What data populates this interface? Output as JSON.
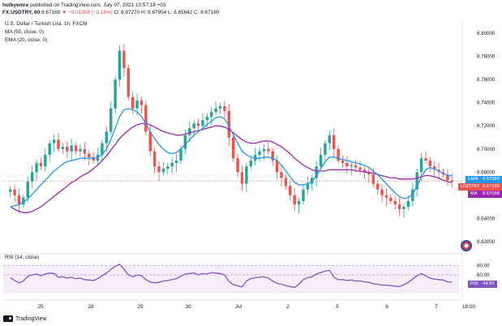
{
  "header": {
    "author": "holbyemre",
    "published": "published on TradingView.com, July 07, 2021 10:57:18 +03",
    "symbol_line": {
      "symbol": "FX:USDTRY, 60",
      "price": "8.67168",
      "change": "▼ −0.01358 (−0.16%)",
      "o": "O: 8.67270",
      "h": "H: 8.67954",
      "l": "L: 8.65642",
      "c": "C: 8.67180"
    }
  },
  "legend": {
    "title": "U.S. Dollar / Turkish Lira, 1h, FXCM",
    "ma": "MA (50, close, 0)",
    "ema": "EMA (20, close, 0)",
    "rsi": "RSI (14, close)"
  },
  "badges": {
    "ema_label": "EMA",
    "ema_value": "8.67683",
    "sym_label": "USDTRY",
    "sym_value": "8.67180",
    "ma_label": "MA",
    "ma_value": "8.67098",
    "rsi_label": "RSI",
    "rsi_value": "44.50"
  },
  "colors": {
    "up": "#26a69a",
    "down": "#ef5350",
    "ma": "#9c27b0",
    "ema": "#2196f3",
    "rsi": "#7e57c2"
  },
  "footer": {
    "brand": "TradingView"
  },
  "chart_data": {
    "type": "candlestick",
    "title": "U.S. Dollar / Turkish Lira, 1h, FXCM",
    "x_ticks": [
      "25",
      "28",
      "29",
      "30",
      "Jul",
      "2",
      "5",
      "6",
      "7",
      "18:00"
    ],
    "y_ticks": [
      "8.80000",
      "8.78000",
      "8.76000",
      "8.74000",
      "8.72000",
      "8.70000",
      "8.68000",
      "8.66000",
      "8.64000",
      "8.62000"
    ],
    "ylim": [
      8.615,
      8.812
    ],
    "close": [
      8.665,
      8.66,
      8.652,
      8.658,
      8.672,
      8.68,
      8.688,
      8.685,
      8.695,
      8.705,
      8.708,
      8.7,
      8.702,
      8.698,
      8.703,
      8.698,
      8.7,
      8.696,
      8.693,
      8.69,
      8.695,
      8.705,
      8.715,
      8.735,
      8.76,
      8.785,
      8.77,
      8.745,
      8.735,
      8.742,
      8.738,
      8.715,
      8.698,
      8.685,
      8.68,
      8.683,
      8.685,
      8.688,
      8.69,
      8.7,
      8.712,
      8.718,
      8.722,
      8.72,
      8.725,
      8.728,
      8.732,
      8.735,
      8.737,
      8.733,
      8.71,
      8.692,
      8.68,
      8.67,
      8.685,
      8.69,
      8.695,
      8.698,
      8.7,
      8.698,
      8.69,
      8.68,
      8.675,
      8.668,
      8.66,
      8.652,
      8.655,
      8.665,
      8.67,
      8.675,
      8.685,
      8.695,
      8.705,
      8.712,
      8.7,
      8.69,
      8.688,
      8.685,
      8.686,
      8.684,
      8.682,
      8.68,
      8.678,
      8.67,
      8.665,
      8.66,
      8.658,
      8.655,
      8.652,
      8.648,
      8.65,
      8.655,
      8.665,
      8.68,
      8.692,
      8.69,
      8.685,
      8.682,
      8.68,
      8.678,
      8.673,
      8.672
    ],
    "ma50": [
      8.65,
      8.648,
      8.646,
      8.645,
      8.645,
      8.646,
      8.648,
      8.65,
      8.653,
      8.656,
      8.659,
      8.662,
      8.665,
      8.668,
      8.671,
      8.673,
      8.676,
      8.678,
      8.68,
      8.683,
      8.686,
      8.69,
      8.694,
      8.699,
      8.704,
      8.709,
      8.713,
      8.716,
      8.719,
      8.721,
      8.722,
      8.722,
      8.721,
      8.719,
      8.717,
      8.715,
      8.714,
      8.713,
      8.712,
      8.712,
      8.713,
      8.714,
      8.715,
      8.716,
      8.717,
      8.718,
      8.719,
      8.72,
      8.72,
      8.719,
      8.717,
      8.714,
      8.711,
      8.708,
      8.706,
      8.705,
      8.705,
      8.706,
      8.707,
      8.707,
      8.706,
      8.704,
      8.702,
      8.699,
      8.696,
      8.692,
      8.689,
      8.686,
      8.684,
      8.682,
      8.681,
      8.681,
      8.681,
      8.682,
      8.682,
      8.682,
      8.682,
      8.682,
      8.682,
      8.681,
      8.681,
      8.68,
      8.68,
      8.679,
      8.678,
      8.677,
      8.676,
      8.675,
      8.675,
      8.674,
      8.674,
      8.674,
      8.674,
      8.675,
      8.676,
      8.677,
      8.677,
      8.676,
      8.675,
      8.673,
      8.672,
      8.671
    ],
    "ema20": [
      8.65,
      8.651,
      8.652,
      8.654,
      8.657,
      8.661,
      8.665,
      8.669,
      8.673,
      8.677,
      8.681,
      8.684,
      8.687,
      8.689,
      8.69,
      8.691,
      8.692,
      8.692,
      8.692,
      8.692,
      8.693,
      8.695,
      8.7,
      8.708,
      8.718,
      8.728,
      8.734,
      8.735,
      8.734,
      8.732,
      8.728,
      8.722,
      8.715,
      8.709,
      8.704,
      8.7,
      8.697,
      8.696,
      8.697,
      8.7,
      8.704,
      8.708,
      8.712,
      8.715,
      8.718,
      8.721,
      8.724,
      8.727,
      8.728,
      8.726,
      8.72,
      8.712,
      8.705,
      8.698,
      8.695,
      8.693,
      8.692,
      8.692,
      8.693,
      8.693,
      8.692,
      8.69,
      8.686,
      8.681,
      8.676,
      8.671,
      8.669,
      8.669,
      8.67,
      8.672,
      8.677,
      8.683,
      8.689,
      8.693,
      8.693,
      8.692,
      8.691,
      8.69,
      8.689,
      8.688,
      8.687,
      8.686,
      8.684,
      8.681,
      8.678,
      8.674,
      8.67,
      8.666,
      8.662,
      8.659,
      8.657,
      8.658,
      8.661,
      8.668,
      8.676,
      8.682,
      8.684,
      8.683,
      8.681,
      8.679,
      8.677,
      8.677
    ],
    "rsi": {
      "name": "RSI (14, close)",
      "ylim": [
        20,
        100
      ],
      "levels": [
        80,
        60
      ],
      "y_ticks": [
        "80.00",
        "60.00"
      ],
      "values": [
        54,
        48,
        43,
        47,
        57,
        60,
        62,
        58,
        62,
        64,
        63,
        55,
        56,
        53,
        55,
        52,
        53,
        50,
        49,
        48,
        52,
        58,
        64,
        72,
        78,
        83,
        72,
        60,
        56,
        60,
        58,
        50,
        45,
        43,
        44,
        47,
        48,
        50,
        52,
        57,
        62,
        63,
        64,
        60,
        63,
        62,
        65,
        64,
        63,
        60,
        46,
        39,
        37,
        34,
        47,
        52,
        54,
        55,
        56,
        53,
        47,
        42,
        40,
        37,
        35,
        33,
        40,
        50,
        54,
        56,
        62,
        65,
        68,
        70,
        55,
        50,
        50,
        48,
        49,
        47,
        47,
        45,
        44,
        41,
        40,
        38,
        38,
        37,
        36,
        35,
        39,
        44,
        51,
        58,
        63,
        58,
        53,
        51,
        50,
        49,
        45,
        44.5
      ]
    }
  }
}
